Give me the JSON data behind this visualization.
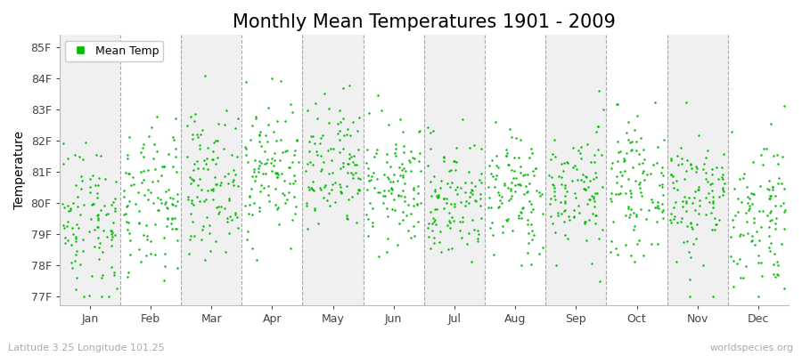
{
  "title": "Monthly Mean Temperatures 1901 - 2009",
  "ylabel": "Temperature",
  "ytick_labels": [
    "77F",
    "78F",
    "79F",
    "80F",
    "81F",
    "82F",
    "83F",
    "84F",
    "85F"
  ],
  "ytick_values": [
    77,
    78,
    79,
    80,
    81,
    82,
    83,
    84,
    85
  ],
  "ylim": [
    76.7,
    85.4
  ],
  "months": [
    "Jan",
    "Feb",
    "Mar",
    "Apr",
    "May",
    "Jun",
    "Jul",
    "Aug",
    "Sep",
    "Oct",
    "Nov",
    "Dec"
  ],
  "n_years": 109,
  "dot_color": "#00BB00",
  "dot_size": 3,
  "background_color": "#FFFFFF",
  "band_color_even": "#F0F0F0",
  "band_color_odd": "#FFFFFF",
  "dashed_line_color": "#888888",
  "legend_label": "Mean Temp",
  "footer_left": "Latitude 3.25 Longitude 101.25",
  "footer_right": "worldspecies.org",
  "title_fontsize": 15,
  "axis_fontsize": 10,
  "tick_fontsize": 9,
  "footer_fontsize": 8,
  "month_means": [
    79.5,
    79.9,
    80.7,
    81.1,
    81.0,
    80.5,
    80.1,
    80.3,
    80.4,
    80.5,
    80.2,
    79.7
  ],
  "month_stds": [
    1.3,
    1.2,
    1.1,
    1.1,
    1.1,
    1.0,
    1.0,
    1.0,
    1.0,
    1.0,
    1.1,
    1.3
  ],
  "seed": 42
}
